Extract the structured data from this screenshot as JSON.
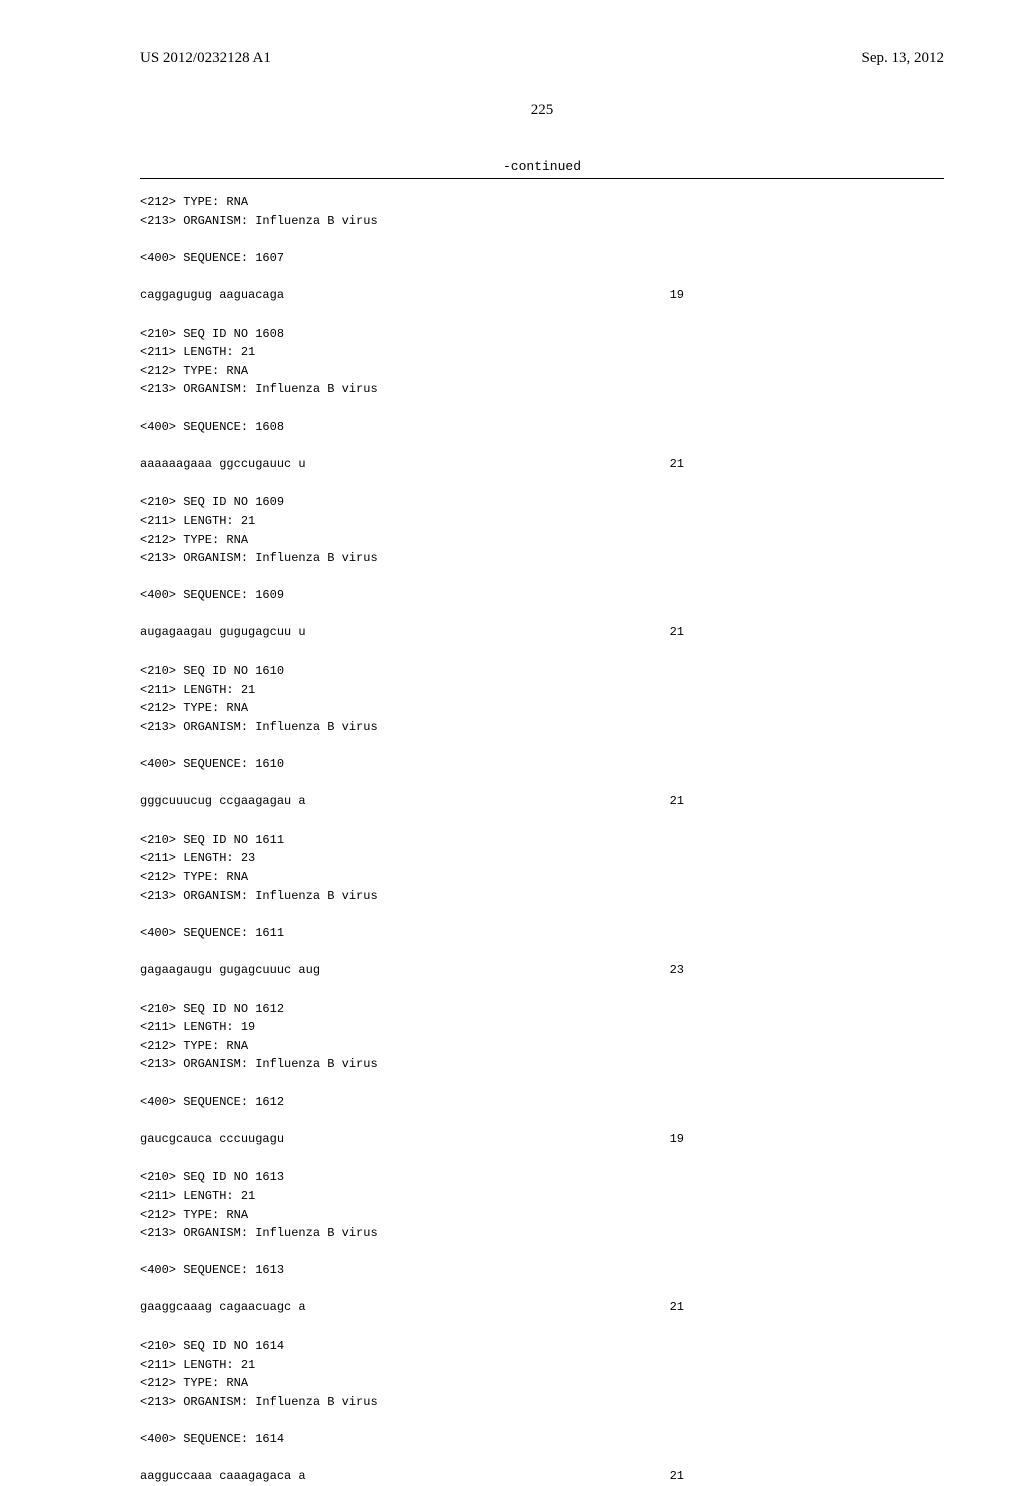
{
  "header": {
    "left": "US 2012/0232128 A1",
    "right": "Sep. 13, 2012"
  },
  "page_number": "225",
  "continued": "-continued",
  "blocks": [
    {
      "lines": [
        "<212> TYPE: RNA",
        "<213> ORGANISM: Influenza B virus",
        "",
        "<400> SEQUENCE: 1607"
      ],
      "sequence": "caggagugug aaguacaga",
      "seqnum": "19"
    },
    {
      "lines": [
        "<210> SEQ ID NO 1608",
        "<211> LENGTH: 21",
        "<212> TYPE: RNA",
        "<213> ORGANISM: Influenza B virus",
        "",
        "<400> SEQUENCE: 1608"
      ],
      "sequence": "aaaaaagaaa ggccugauuc u",
      "seqnum": "21"
    },
    {
      "lines": [
        "<210> SEQ ID NO 1609",
        "<211> LENGTH: 21",
        "<212> TYPE: RNA",
        "<213> ORGANISM: Influenza B virus",
        "",
        "<400> SEQUENCE: 1609"
      ],
      "sequence": "augagaagau gugugagcuu u",
      "seqnum": "21"
    },
    {
      "lines": [
        "<210> SEQ ID NO 1610",
        "<211> LENGTH: 21",
        "<212> TYPE: RNA",
        "<213> ORGANISM: Influenza B virus",
        "",
        "<400> SEQUENCE: 1610"
      ],
      "sequence": "gggcuuucug ccgaagagau a",
      "seqnum": "21"
    },
    {
      "lines": [
        "<210> SEQ ID NO 1611",
        "<211> LENGTH: 23",
        "<212> TYPE: RNA",
        "<213> ORGANISM: Influenza B virus",
        "",
        "<400> SEQUENCE: 1611"
      ],
      "sequence": "gagaagaugu gugagcuuuc aug",
      "seqnum": "23"
    },
    {
      "lines": [
        "<210> SEQ ID NO 1612",
        "<211> LENGTH: 19",
        "<212> TYPE: RNA",
        "<213> ORGANISM: Influenza B virus",
        "",
        "<400> SEQUENCE: 1612"
      ],
      "sequence": "gaucgcauca cccuugagu",
      "seqnum": "19"
    },
    {
      "lines": [
        "<210> SEQ ID NO 1613",
        "<211> LENGTH: 21",
        "<212> TYPE: RNA",
        "<213> ORGANISM: Influenza B virus",
        "",
        "<400> SEQUENCE: 1613"
      ],
      "sequence": "gaaggcaaag cagaacuagc a",
      "seqnum": "21"
    },
    {
      "lines": [
        "<210> SEQ ID NO 1614",
        "<211> LENGTH: 21",
        "<212> TYPE: RNA",
        "<213> ORGANISM: Influenza B virus",
        "",
        "<400> SEQUENCE: 1614"
      ],
      "sequence": "aagguccaaa caaagagaca a",
      "seqnum": "21"
    }
  ]
}
